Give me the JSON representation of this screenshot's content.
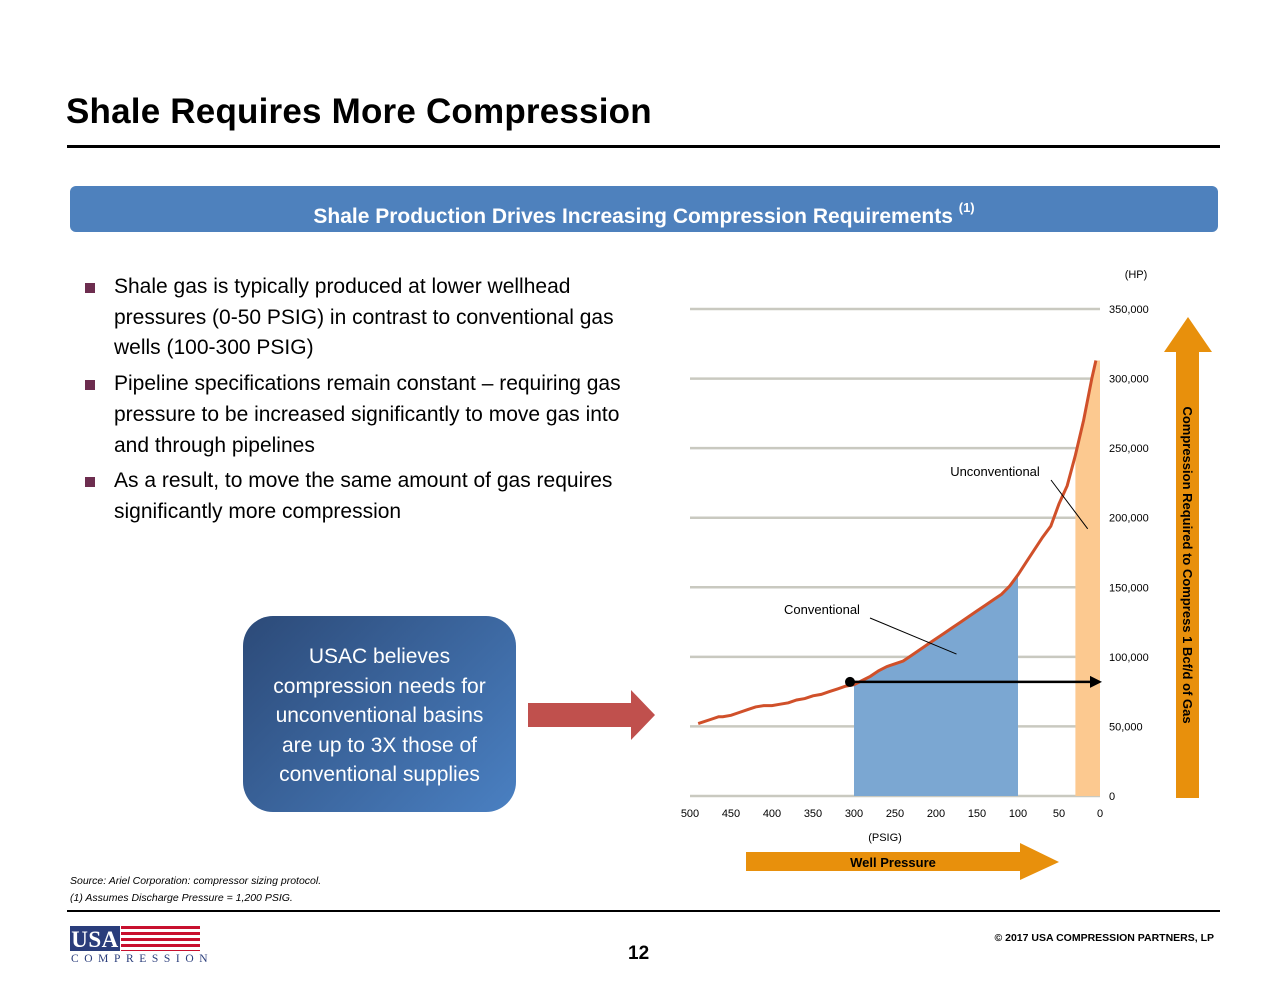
{
  "header": {
    "title": "Shale Requires More Compression"
  },
  "banner": {
    "text": "Shale Production Drives Increasing Compression Requirements",
    "footnote_ref": "(1)"
  },
  "bullets": [
    "Shale gas is typically produced at lower wellhead pressures (0-50 PSIG) in contrast to conventional gas wells (100-300 PSIG)",
    "Pipeline specifications remain constant – requiring gas pressure to be increased significantly to move gas into and through pipelines",
    "As a result, to move the same amount of gas requires significantly more compression"
  ],
  "callout": {
    "lines": [
      "USAC believes",
      "compression needs for",
      "unconventional basins",
      "are up to 3X those of",
      "conventional supplies"
    ]
  },
  "colors": {
    "accent": "#4e81bd",
    "curve": "#d0502a",
    "conventional_fill": "#7ba7d2",
    "unconventional_fill": "#fcc990",
    "orange_arrow": "#e8900c",
    "red_arrow": "#c0504d",
    "bullet": "#6d2d4f"
  },
  "chart_data": {
    "type": "area",
    "x_unit_label": "(PSIG)",
    "y_unit_label": "(HP)",
    "x_axis_title": "Well Pressure",
    "y_axis_title": "Compression Required to Compress 1 Bcf/d of Gas",
    "xlim": [
      500,
      0
    ],
    "ylim": [
      0,
      350000
    ],
    "x_ticks": [
      500,
      450,
      400,
      350,
      300,
      250,
      200,
      150,
      100,
      50,
      0
    ],
    "x_tick_labels": [
      "500",
      "450",
      "400",
      "350",
      "300",
      "250",
      "200",
      "150",
      "100",
      "50",
      "0"
    ],
    "y_ticks": [
      0,
      50000,
      100000,
      150000,
      200000,
      250000,
      300000,
      350000
    ],
    "y_tick_labels": [
      "0",
      "50,000",
      "100,000",
      "150,000",
      "200,000",
      "250,000",
      "300,000",
      "350,000"
    ],
    "grid": true,
    "series": [
      {
        "x": [
          490,
          475,
          465,
          460,
          450,
          440,
          430,
          420,
          410,
          400,
          390,
          380,
          370,
          360,
          350,
          340,
          330,
          320,
          310,
          300,
          290,
          280,
          270,
          260,
          250,
          240,
          230,
          220,
          210,
          200,
          190,
          180,
          170,
          160,
          150,
          140,
          130,
          120,
          110,
          100,
          90,
          80,
          70,
          60,
          50,
          40,
          30,
          20,
          10,
          5
        ],
        "y": [
          52000,
          55000,
          57000,
          57000,
          58000,
          60000,
          62000,
          64000,
          65000,
          65000,
          66000,
          67000,
          69000,
          70000,
          72000,
          73000,
          75000,
          77000,
          79000,
          80000,
          83000,
          86000,
          90000,
          93000,
          95000,
          97000,
          101000,
          105000,
          109000,
          113000,
          117000,
          121000,
          125000,
          129000,
          133000,
          137000,
          141000,
          145000,
          151000,
          159000,
          168000,
          177000,
          186000,
          194000,
          210000,
          223000,
          245000,
          270000,
          300000,
          313000
        ]
      }
    ],
    "shaded_regions": [
      {
        "name": "Conventional",
        "x_range": [
          300,
          100
        ]
      },
      {
        "name": "Unconventional",
        "x_range": [
          30,
          0
        ]
      }
    ],
    "annotations": [
      {
        "text": "Conventional",
        "target_x": 175,
        "target_y": 102000
      },
      {
        "text": "Unconventional",
        "target_x": 15,
        "target_y": 192000
      }
    ],
    "reference_line": {
      "from_x": 300,
      "to_x": 0,
      "y": 82000
    }
  },
  "footer": {
    "source": "Source: Ariel Corporation: compressor sizing protocol.",
    "note": "(1)    Assumes Discharge Pressure = 1,200 PSIG.",
    "copyright": "© 2017 USA COMPRESSION PARTNERS, LP",
    "page": "12",
    "logo_top": "USA",
    "logo_bottom": "COMPRESSION"
  }
}
